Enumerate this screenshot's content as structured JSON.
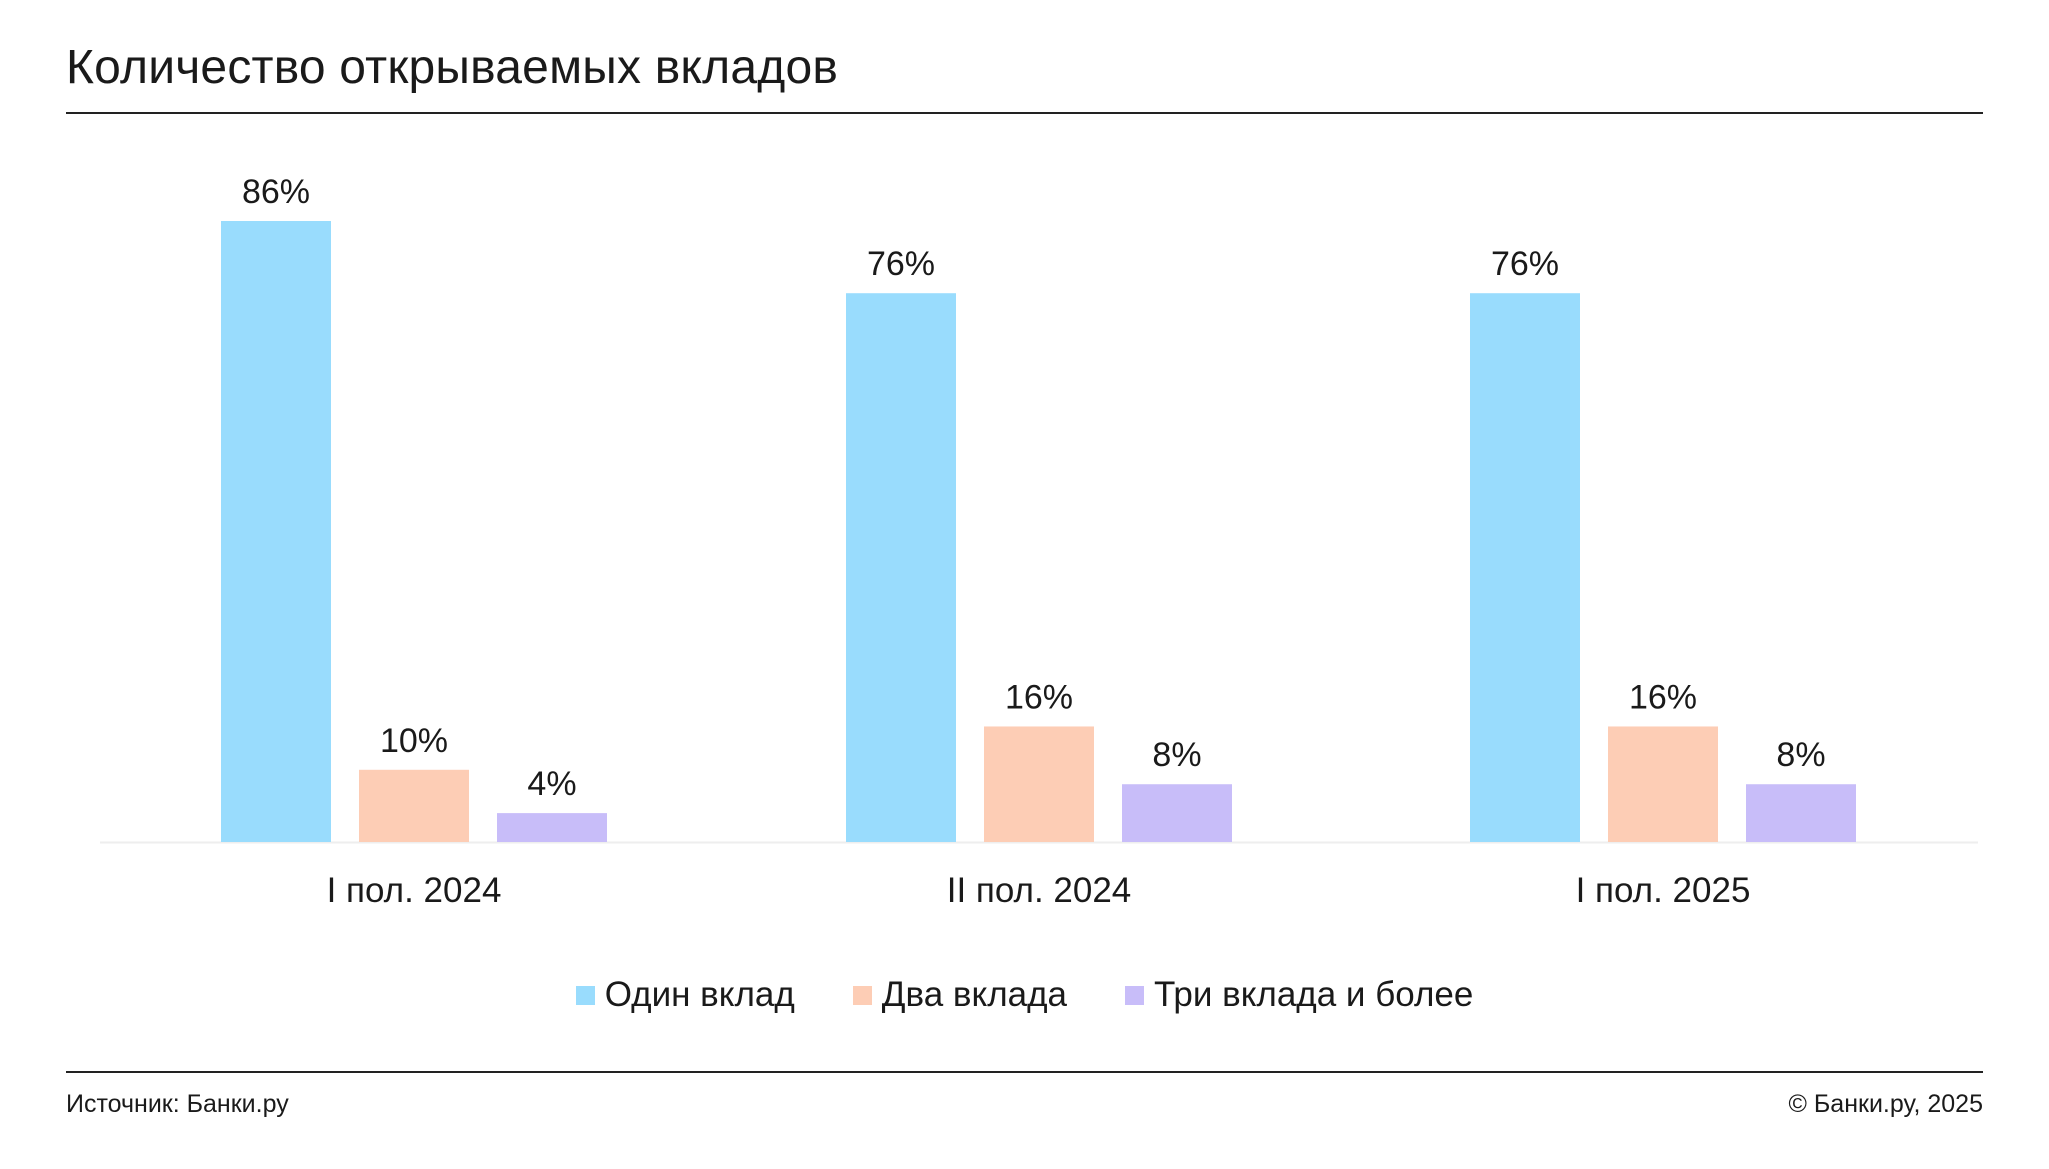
{
  "title": "Количество открываемых вкладов",
  "footer": {
    "source": "Источник: Банки.ру",
    "copyright": "© Банки.ру, 2025"
  },
  "chart_data": {
    "type": "bar",
    "categories": [
      "I пол. 2024",
      "II пол. 2024",
      "I пол. 2025"
    ],
    "series": [
      {
        "name": "Один вклад",
        "values": [
          86,
          76,
          76
        ],
        "color": "#99dcfd"
      },
      {
        "name": "Два вклада",
        "values": [
          10,
          16,
          16
        ],
        "color": "#fdcdb5"
      },
      {
        "name": "Три вклада и более",
        "values": [
          4,
          8,
          8
        ],
        "color": "#c8bdf9"
      }
    ],
    "value_suffix": "%",
    "ylim": [
      0,
      86
    ],
    "grid": false,
    "legend_position": "bottom"
  }
}
